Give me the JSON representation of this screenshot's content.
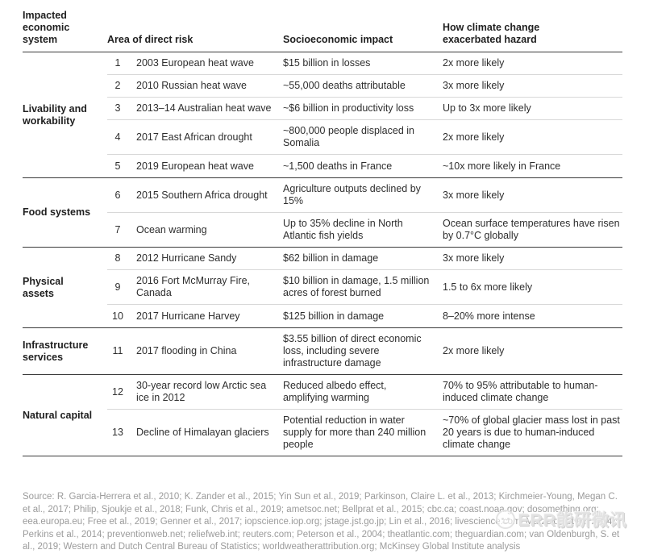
{
  "chart_data": {
    "type": "table",
    "columns": {
      "system": "Impacted economic system",
      "risk": "Area of direct risk",
      "impact": "Socioeconomic impact",
      "hazard": "How climate change exacerbated hazard"
    },
    "groups": [
      {
        "label": "Livability and workability",
        "rows": [
          {
            "num": "1",
            "risk": "2003 European heat wave",
            "impact": "$15 billion in losses",
            "hazard": "2x more likely"
          },
          {
            "num": "2",
            "risk": "2010 Russian heat wave",
            "impact": "~55,000 deaths attributable",
            "hazard": "3x more likely"
          },
          {
            "num": "3",
            "risk": "2013–14 Australian heat wave",
            "impact": "~$6 billion in productivity loss",
            "hazard": "Up to 3x more likely"
          },
          {
            "num": "4",
            "risk": "2017 East African drought",
            "impact": "~800,000 people displaced in Somalia",
            "hazard": "2x more likely"
          },
          {
            "num": "5",
            "risk": "2019 European heat wave",
            "impact": "~1,500 deaths in France",
            "hazard": "~10x more likely in France"
          }
        ]
      },
      {
        "label": "Food systems",
        "rows": [
          {
            "num": "6",
            "risk": "2015 Southern Africa drought",
            "impact": "Agriculture outputs declined by 15%",
            "hazard": "3x more likely"
          },
          {
            "num": "7",
            "risk": "Ocean warming",
            "impact": "Up to 35% decline in North Atlantic fish yields",
            "hazard": "Ocean surface temperatures have risen by 0.7°C globally"
          }
        ]
      },
      {
        "label": "Physical assets",
        "rows": [
          {
            "num": "8",
            "risk": "2012 Hurricane Sandy",
            "impact": "$62 billion in damage",
            "hazard": "3x more likely"
          },
          {
            "num": "9",
            "risk": "2016 Fort McMurray Fire, Canada",
            "impact": "$10 billion in damage, 1.5 million acres of forest burned",
            "hazard": "1.5 to 6x more likely"
          },
          {
            "num": "10",
            "risk": "2017 Hurricane Harvey",
            "impact": "$125 billion in damage",
            "hazard": "8–20% more intense"
          }
        ]
      },
      {
        "label": "Infrastructure services",
        "rows": [
          {
            "num": "11",
            "risk": "2017 flooding in China",
            "impact": "$3.55 billion of direct economic loss, including severe infrastructure damage",
            "hazard": "2x more likely"
          }
        ]
      },
      {
        "label": "Natural capital",
        "rows": [
          {
            "num": "12",
            "risk": "30-year record low Arctic sea ice in 2012",
            "impact": "Reduced albedo effect, amplifying warming",
            "hazard": "70% to 95% attributable to human-induced climate change"
          },
          {
            "num": "13",
            "risk": "Decline of Himalayan glaciers",
            "impact": "Potential reduction in water supply for more than 240 million people",
            "hazard": "~70% of global glacier mass lost in past 20 years is due to human-induced climate change"
          }
        ]
      }
    ]
  },
  "footer": {
    "source": "Source: R. Garcia-Herrera et al., 2010; K. Zander et al., 2015; Yin Sun et al., 2019; Parkinson, Claire L. et al., 2013; Kirchmeier-Young, Megan C. et al., 2017; Philip, Sjoukje et al., 2018; Funk, Chris et al., 2019; ametsoc.net; Bellprat et al., 2015; cbc.ca; coast.noaa.gov; dosomething.org; eea.europa.eu; Free et al., 2019; Genner et al., 2017; iopscience.iop.org; jstage.jst.go.jp; Lin et al., 2016; livescience.com; Marzeion et al., 2014; Perkins et al., 2014; preventionweb.net; reliefweb.int; reuters.com; Peterson et al., 2004; theatlantic.com; theguardian.com; van Oldenburgh, S. et al., 2019; Western and Dutch Central Bureau of Statistics; worldweatherattribution.org; McKinsey Global Institute analysis"
  },
  "watermark": {
    "text": "ERR能研微讯",
    "logo": "smiley-face-logo"
  },
  "colors": {
    "rule_dark": "#3a3a3a",
    "rule_light": "#d8d8d8",
    "text": "#2e2e2e",
    "source_text": "#9b9b9b",
    "watermark": "#e2e2e2",
    "background": "#ffffff"
  }
}
